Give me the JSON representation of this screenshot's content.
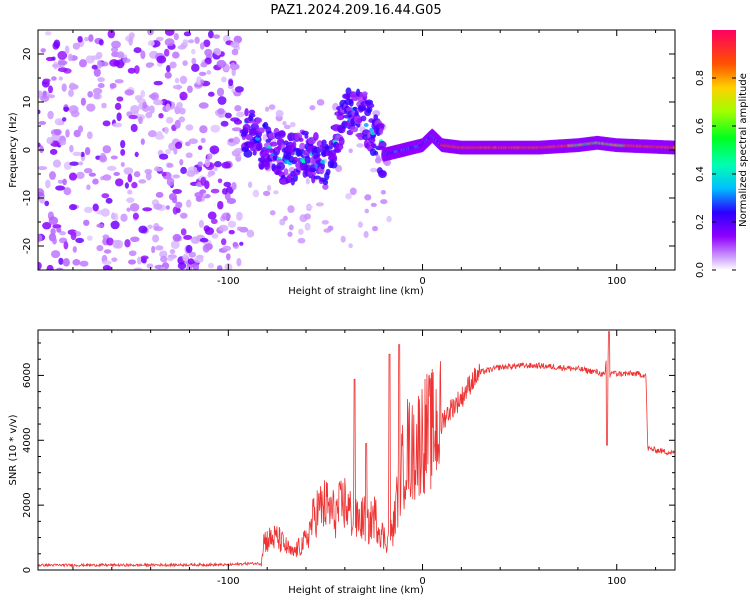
{
  "title": "PAZ1.2024.209.16.44.G05",
  "chart_data": [
    {
      "type": "heatmap",
      "xlabel": "Height of straight line (km)",
      "ylabel": "Frequency (Hz)",
      "xlim": [
        -198,
        130
      ],
      "ylim": [
        -25,
        25
      ],
      "xticks": [
        -100,
        0,
        100
      ],
      "yticks": [
        -20,
        -10,
        0,
        10,
        20
      ],
      "colorbar": {
        "label": "Normalized spectral amplitude",
        "range": [
          0,
          1
        ],
        "ticks": [
          "0.0",
          "0.2",
          "0.4",
          "0.6",
          "0.8"
        ],
        "colormap": "gist_rainbow_r"
      },
      "regions": [
        {
          "x": [
            -198,
            -92
          ],
          "freq_spread": [
            -25,
            25
          ],
          "amplitude": "low",
          "description_free": true
        },
        {
          "x": [
            -92,
            -20
          ],
          "freq_center": [
            -10,
            12
          ],
          "amplitude": "low-medium"
        },
        {
          "x": [
            -20,
            10
          ],
          "freq_center": [
            -1,
            3
          ],
          "amplitude": "medium"
        },
        {
          "x": [
            10,
            130
          ],
          "freq_center": [
            0,
            1
          ],
          "amplitude": "high"
        }
      ],
      "ridge": {
        "x": [
          -90,
          -80,
          -70,
          -60,
          -50,
          -40,
          -30,
          -20,
          -10,
          0,
          5,
          10,
          20,
          40,
          60,
          80,
          90,
          100,
          130
        ],
        "y": [
          4,
          0,
          -2,
          -1,
          -3,
          8,
          7,
          -1,
          0,
          1,
          3,
          1,
          0.5,
          0.5,
          0.5,
          1,
          1.5,
          1,
          0.5
        ]
      }
    },
    {
      "type": "line",
      "xlabel": "Height of straight line (km)",
      "ylabel": "SNR (10 * v/v)",
      "xlim": [
        -198,
        130
      ],
      "ylim": [
        0,
        7400
      ],
      "xticks": [
        -100,
        0,
        100
      ],
      "yticks": [
        0,
        2000,
        4000,
        6000
      ],
      "color": "#ee3333",
      "series": [
        {
          "x": [
            -198,
            -150,
            -120,
            -100,
            -90,
            -83,
            -82,
            -75,
            -70,
            -67,
            -60,
            -55,
            -50,
            -45,
            -40,
            -35,
            -30,
            -28,
            -25,
            -20,
            -18,
            -15,
            -12,
            -10,
            -8,
            -5,
            0,
            5,
            10,
            15,
            20,
            25,
            30,
            40,
            50,
            60,
            70,
            80,
            90,
            94,
            95,
            96,
            97,
            100,
            110,
            115,
            116,
            120,
            130
          ],
          "y": [
            150,
            150,
            160,
            160,
            200,
            200,
            900,
            1000,
            700,
            500,
            900,
            1800,
            2000,
            1700,
            2100,
            1500,
            1600,
            1300,
            1700,
            1000,
            900,
            1300,
            2700,
            3200,
            3800,
            3600,
            4200,
            4300,
            4600,
            5000,
            5300,
            5800,
            6100,
            6250,
            6300,
            6300,
            6250,
            6200,
            6100,
            6000,
            6900,
            5800,
            6100,
            6050,
            6050,
            6000,
            3750,
            3700,
            3600
          ]
        }
      ],
      "spikes": [
        {
          "x": -35,
          "y": 5880
        },
        {
          "x": -29,
          "y": 3900
        },
        {
          "x": -17,
          "y": 6650
        },
        {
          "x": -12,
          "y": 6950
        },
        {
          "x": 96,
          "y": 7350
        },
        {
          "x": 95,
          "y": 3850
        }
      ]
    }
  ]
}
